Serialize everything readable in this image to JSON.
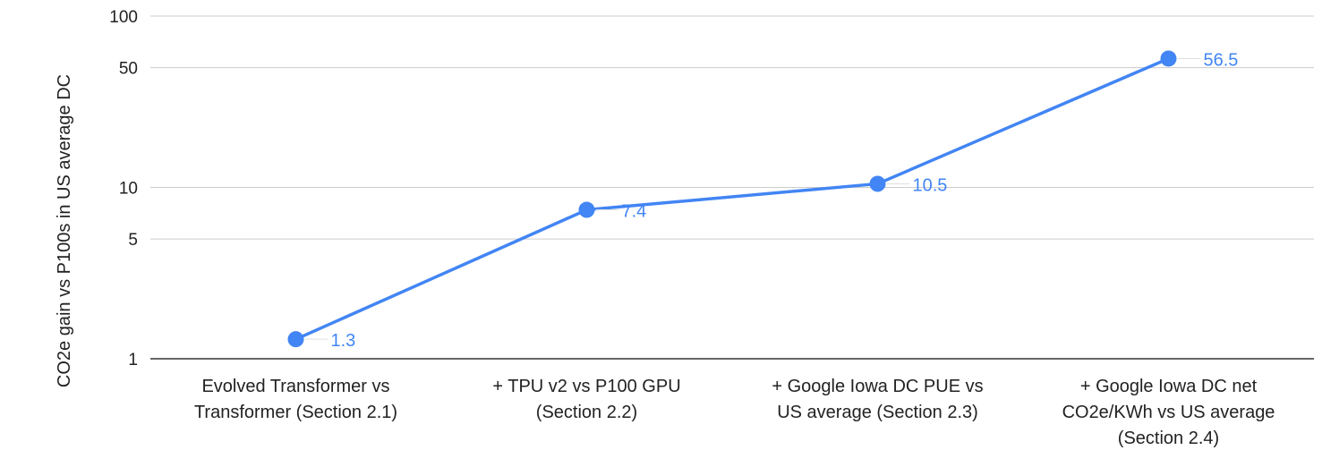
{
  "chart_data": {
    "type": "line",
    "title": "",
    "xlabel": "",
    "ylabel": "CO2e gain vs P100s in US average DC",
    "yscale": "log",
    "ylim": [
      1,
      100
    ],
    "yticks": [
      1,
      5,
      10,
      50,
      100
    ],
    "categories": [
      [
        "Evolved Transformer vs",
        "Transformer (Section 2.1)"
      ],
      [
        "+ TPU v2 vs P100 GPU",
        "(Section 2.2)"
      ],
      [
        "+ Google Iowa DC PUE vs",
        "US average (Section 2.3)"
      ],
      [
        "+ Google Iowa DC net",
        "CO2e/KWh vs US average",
        "(Section 2.4)"
      ]
    ],
    "series": [
      {
        "values": [
          1.3,
          7.4,
          10.5,
          56.5
        ],
        "labels": [
          "1.3",
          "7.4",
          "10.5",
          "56.5"
        ]
      }
    ],
    "grid": true,
    "colors": {
      "line": "#4285f4",
      "grid": "#cccccc",
      "axis": "#333333",
      "text": "#222222"
    }
  }
}
